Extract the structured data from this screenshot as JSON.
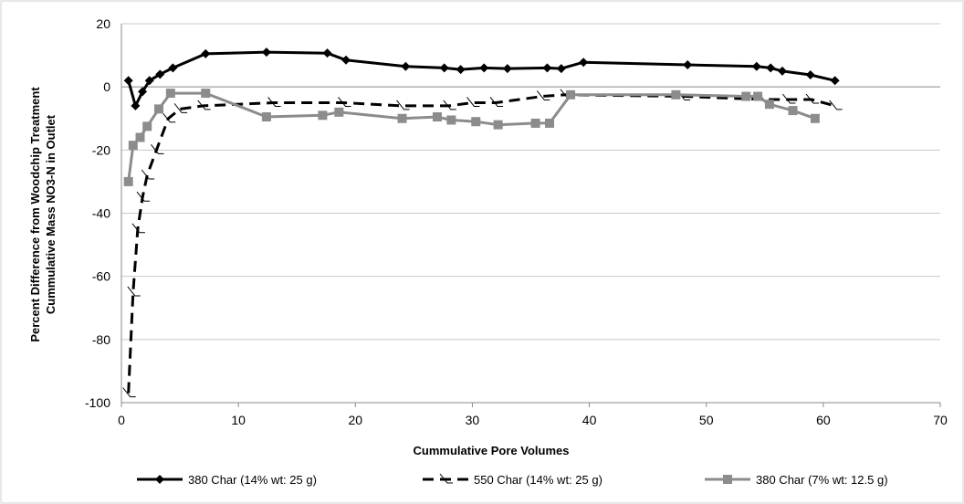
{
  "chart_data": {
    "type": "line",
    "title": "",
    "xlabel": "Cummulative Pore Volumes",
    "ylabel_lines": [
      "Percent Difference from Woodchip Treatment",
      "Cummulative Mass NO3-N in Outlet"
    ],
    "xlim": [
      0,
      70
    ],
    "ylim": [
      -100,
      20
    ],
    "x_ticks": [
      0,
      10,
      20,
      30,
      40,
      50,
      60,
      70
    ],
    "y_ticks": [
      -100,
      -80,
      -60,
      -40,
      -20,
      0,
      20
    ],
    "grid": "horizontal",
    "legend_position": "bottom",
    "series": [
      {
        "name": "380 Char (14% wt: 25 g)",
        "color": "#000000",
        "line_style": "solid",
        "marker": "diamond",
        "x": [
          0.6,
          1.2,
          1.8,
          2.4,
          3.3,
          4.4,
          7.2,
          12.4,
          17.6,
          19.2,
          24.3,
          27.6,
          29.0,
          31.0,
          33.0,
          36.4,
          37.6,
          39.5,
          48.4,
          54.3,
          55.5,
          56.5,
          58.9,
          61.0
        ],
        "y": [
          2,
          -6,
          -1.5,
          2,
          4,
          6,
          10.5,
          11,
          10.7,
          8.5,
          6.5,
          6,
          5.5,
          6,
          5.8,
          6,
          5.8,
          7.8,
          7,
          6.5,
          6,
          5,
          3.8,
          2
        ]
      },
      {
        "name": "550 Char (14% wt: 25 g)",
        "color": "#000000",
        "line_style": "dashed",
        "marker": "check",
        "x": [
          0.6,
          1.0,
          1.4,
          1.8,
          2.2,
          3.0,
          4.0,
          5.0,
          7.0,
          13.0,
          19.0,
          24.0,
          28.0,
          30.0,
          32.0,
          36.0,
          38.0,
          48.0,
          55.0,
          57.0,
          59.0,
          61.0
        ],
        "y": [
          -97,
          -65,
          -45,
          -35,
          -28,
          -20,
          -10,
          -7,
          -6,
          -5,
          -5,
          -6,
          -6,
          -5,
          -5,
          -3,
          -2.5,
          -3,
          -4,
          -4,
          -4,
          -6
        ]
      },
      {
        "name": "380 Char (7% wt: 12.5 g)",
        "color": "#8c8c8c",
        "line_style": "solid",
        "marker": "square",
        "x": [
          0.6,
          1.0,
          1.6,
          2.2,
          3.2,
          4.2,
          7.2,
          12.4,
          17.2,
          18.6,
          24.0,
          27.0,
          28.2,
          30.3,
          32.2,
          35.4,
          36.6,
          38.4,
          47.4,
          53.4,
          54.4,
          55.4,
          57.4,
          59.3
        ],
        "y": [
          -30,
          -18.5,
          -16,
          -12.5,
          -7,
          -2,
          -2,
          -9.5,
          -9,
          -8,
          -10,
          -9.5,
          -10.5,
          -11,
          -12,
          -11.5,
          -11.5,
          -2.5,
          -2.5,
          -3,
          -3,
          -5.5,
          -7.5,
          -10
        ]
      }
    ]
  }
}
